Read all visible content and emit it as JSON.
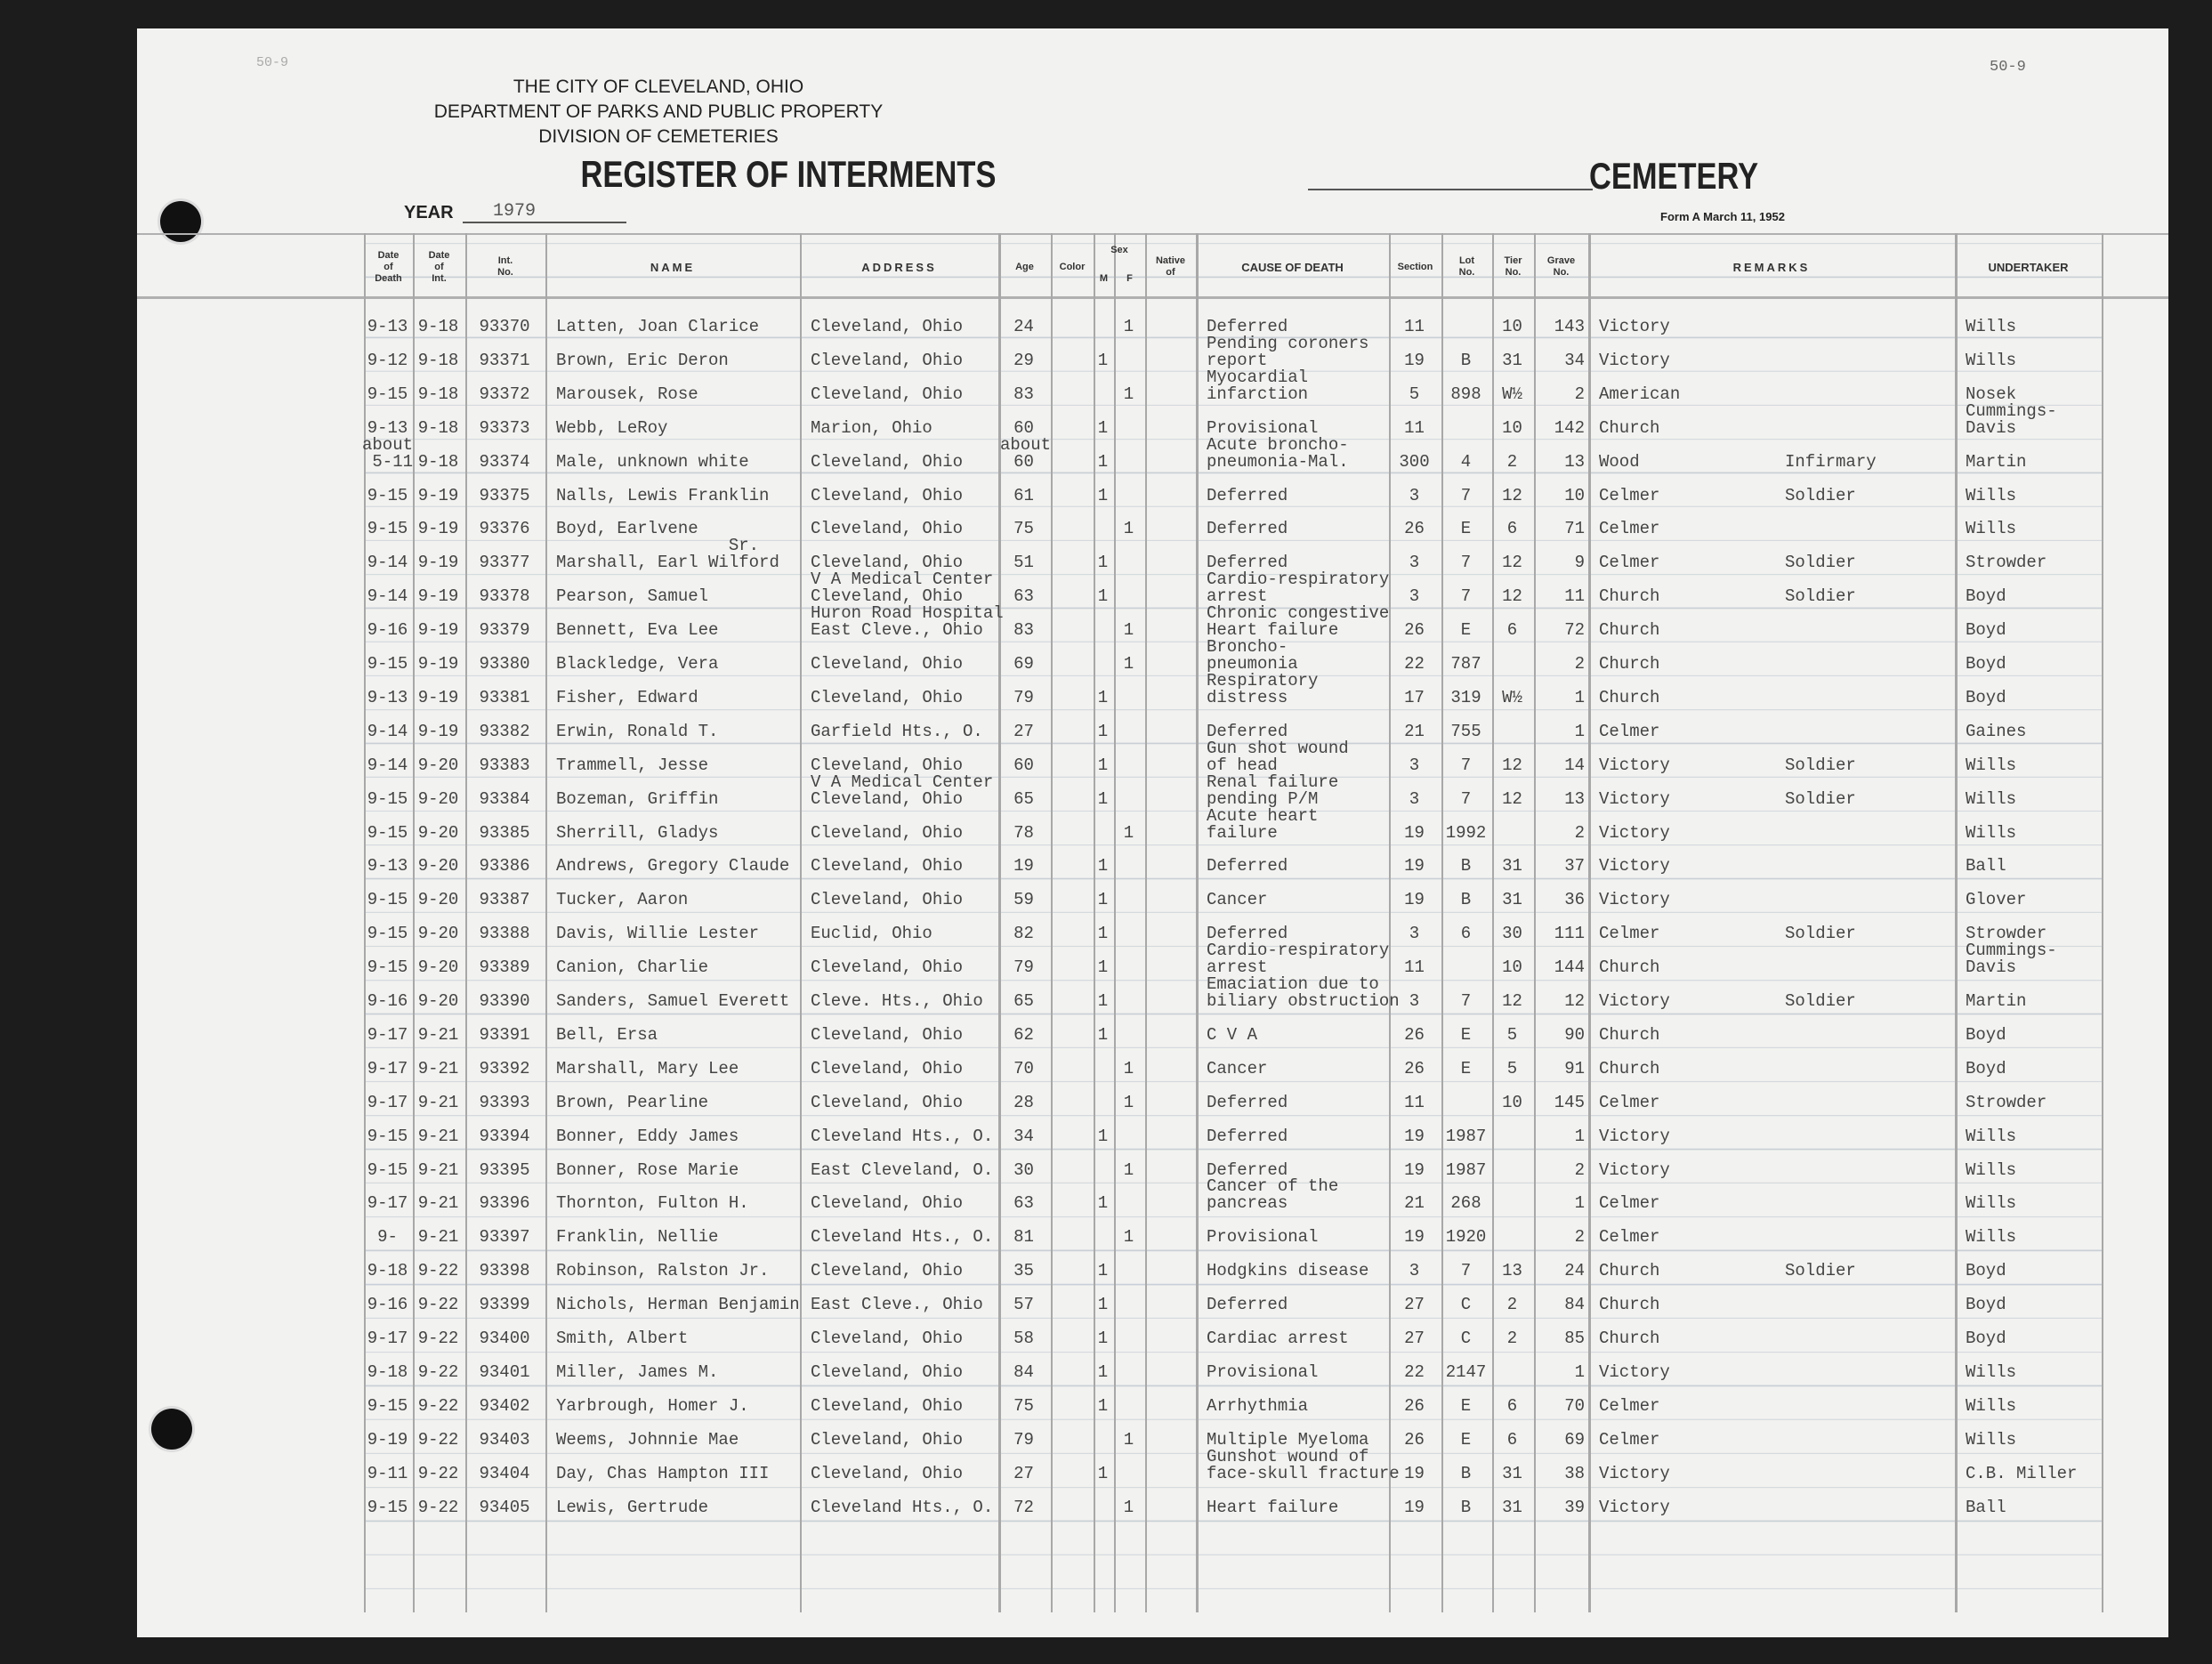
{
  "header": {
    "page_ref_left": "50-9",
    "page_ref_right": "50-9",
    "city": "THE CITY OF CLEVELAND, OHIO",
    "department": "DEPARTMENT OF PARKS AND PUBLIC PROPERTY",
    "division": "DIVISION OF CEMETERIES",
    "title": "REGISTER OF INTERMENTS",
    "year_label": "YEAR",
    "year": "1979",
    "cemetery_label": "CEMETERY",
    "form": "Form A March 11, 1952"
  },
  "columns": {
    "death": "Date\nof\nDeath",
    "interment": "Date\nof\nInt.",
    "int_no": "Int.\nNo.",
    "name": "NAME",
    "address": "ADDRESS",
    "age": "Age",
    "color": "Color",
    "sex": "Sex",
    "m": "M",
    "f": "F",
    "native": "Native\nof",
    "cause": "CAUSE OF DEATH",
    "section": "Section",
    "lot": "Lot\nNo.",
    "tier": "Tier\nNo.",
    "grave": "Grave\nNo.",
    "remarks": "REMARKS",
    "undertaker": "UNDERTAKER"
  },
  "rows": [
    {
      "death": "9-13",
      "interment": "9-18",
      "int_no": "93370",
      "name": "Latten, Joan Clarice",
      "address": "Cleveland, Ohio",
      "age": "24",
      "m": "",
      "f": "1",
      "cause": "Deferred",
      "section": "11",
      "lot": "",
      "tier": "10",
      "grave": "143",
      "cemetery": "Victory",
      "remarks": "",
      "undertaker": "Wills"
    },
    {
      "death": "9-12",
      "interment": "9-18",
      "int_no": "93371",
      "name": "Brown, Eric Deron",
      "address": "Cleveland, Ohio",
      "age": "29",
      "m": "1",
      "f": "",
      "cause": "Pending coroners\nreport",
      "section": "19",
      "lot": "B",
      "tier": "31",
      "grave": "34",
      "cemetery": "Victory",
      "remarks": "",
      "undertaker": "Wills"
    },
    {
      "death": "9-15",
      "interment": "9-18",
      "int_no": "93372",
      "name": "Marousek, Rose",
      "address": "Cleveland, Ohio",
      "age": "83",
      "m": "",
      "f": "1",
      "cause": "Myocardial\ninfarction",
      "section": "5",
      "lot": "898",
      "tier": "W½",
      "grave": "2",
      "cemetery": "American",
      "remarks": "",
      "undertaker": "Nosek"
    },
    {
      "death": "9-13",
      "interment": "9-18",
      "int_no": "93373",
      "name": "Webb, LeRoy",
      "address": "Marion, Ohio",
      "age": "60",
      "m": "1",
      "f": "",
      "cause": "Provisional",
      "section": "11",
      "lot": "",
      "tier": "10",
      "grave": "142",
      "cemetery": "Church",
      "remarks": "",
      "undertaker": "Cummings-\nDavis"
    },
    {
      "death": "about\n5-11",
      "interment": "9-18",
      "int_no": "93374",
      "name": "Male, unknown white",
      "address": "Cleveland, Ohio",
      "age": "about\n60",
      "m": "1",
      "f": "",
      "cause": "Acute broncho-\npneumonia-Mal.",
      "section": "300",
      "lot": "4",
      "tier": "2",
      "grave": "13",
      "cemetery": "Wood",
      "remarks": "Infirmary",
      "undertaker": "Martin"
    },
    {
      "death": "9-15",
      "interment": "9-19",
      "int_no": "93375",
      "name": "Nalls, Lewis Franklin",
      "address": "Cleveland, Ohio",
      "age": "61",
      "m": "1",
      "f": "",
      "cause": "Deferred",
      "section": "3",
      "lot": "7",
      "tier": "12",
      "grave": "10",
      "cemetery": "Celmer",
      "remarks": "Soldier",
      "undertaker": "Wills"
    },
    {
      "death": "9-15",
      "interment": "9-19",
      "int_no": "93376",
      "name": "Boyd, Earlvene",
      "address": "Cleveland, Ohio",
      "age": "75",
      "m": "",
      "f": "1",
      "cause": "Deferred",
      "section": "26",
      "lot": "E",
      "tier": "6",
      "grave": "71",
      "cemetery": "Celmer",
      "remarks": "",
      "undertaker": "Wills"
    },
    {
      "death": "9-14",
      "interment": "9-19",
      "int_no": "93377",
      "name": "                 Sr.\nMarshall, Earl Wilford",
      "address": "Cleveland, Ohio",
      "age": "51",
      "m": "1",
      "f": "",
      "cause": "Deferred",
      "section": "3",
      "lot": "7",
      "tier": "12",
      "grave": "9",
      "cemetery": "Celmer",
      "remarks": "Soldier",
      "undertaker": "Strowder"
    },
    {
      "death": "9-14",
      "interment": "9-19",
      "int_no": "93378",
      "name": "Pearson, Samuel",
      "address": "V A Medical Center\nCleveland, Ohio",
      "age": "63",
      "m": "1",
      "f": "",
      "cause": "Cardio-respiratory\narrest",
      "section": "3",
      "lot": "7",
      "tier": "12",
      "grave": "11",
      "cemetery": "Church",
      "remarks": "Soldier",
      "undertaker": "Boyd"
    },
    {
      "death": "9-16",
      "interment": "9-19",
      "int_no": "93379",
      "name": "Bennett, Eva Lee",
      "address": "Huron Road Hospital\nEast Cleve., Ohio",
      "age": "83",
      "m": "",
      "f": "1",
      "cause": "Chronic congestive\nHeart failure",
      "section": "26",
      "lot": "E",
      "tier": "6",
      "grave": "72",
      "cemetery": "Church",
      "remarks": "",
      "undertaker": "Boyd"
    },
    {
      "death": "9-15",
      "interment": "9-19",
      "int_no": "93380",
      "name": "Blackledge, Vera",
      "address": "Cleveland, Ohio",
      "age": "69",
      "m": "",
      "f": "1",
      "cause": "Broncho-\npneumonia",
      "section": "22",
      "lot": "787",
      "tier": "",
      "grave": "2",
      "cemetery": "Church",
      "remarks": "",
      "undertaker": "Boyd"
    },
    {
      "death": "9-13",
      "interment": "9-19",
      "int_no": "93381",
      "name": "Fisher, Edward",
      "address": "Cleveland, Ohio",
      "age": "79",
      "m": "1",
      "f": "",
      "cause": "Respiratory\ndistress",
      "section": "17",
      "lot": "319",
      "tier": "W½",
      "grave": "1",
      "cemetery": "Church",
      "remarks": "",
      "undertaker": "Boyd"
    },
    {
      "death": "9-14",
      "interment": "9-19",
      "int_no": "93382",
      "name": "Erwin, Ronald T.",
      "address": "Garfield Hts., O.",
      "age": "27",
      "m": "1",
      "f": "",
      "cause": "Deferred",
      "section": "21",
      "lot": "755",
      "tier": "",
      "grave": "1",
      "cemetery": "Celmer",
      "remarks": "",
      "undertaker": "Gaines"
    },
    {
      "death": "9-14",
      "interment": "9-20",
      "int_no": "93383",
      "name": "Trammell, Jesse",
      "address": "Cleveland, Ohio",
      "age": "60",
      "m": "1",
      "f": "",
      "cause": "Gun shot wound\nof head",
      "section": "3",
      "lot": "7",
      "tier": "12",
      "grave": "14",
      "cemetery": "Victory",
      "remarks": "Soldier",
      "undertaker": "Wills"
    },
    {
      "death": "9-15",
      "interment": "9-20",
      "int_no": "93384",
      "name": "Bozeman, Griffin",
      "address": "V A Medical Center\nCleveland, Ohio",
      "age": "65",
      "m": "1",
      "f": "",
      "cause": "Renal failure\npending P/M",
      "section": "3",
      "lot": "7",
      "tier": "12",
      "grave": "13",
      "cemetery": "Victory",
      "remarks": "Soldier",
      "undertaker": "Wills"
    },
    {
      "death": "9-15",
      "interment": "9-20",
      "int_no": "93385",
      "name": "Sherrill, Gladys",
      "address": "Cleveland, Ohio",
      "age": "78",
      "m": "",
      "f": "1",
      "cause": "Acute heart\nfailure",
      "section": "19",
      "lot": "1992",
      "tier": "",
      "grave": "2",
      "cemetery": "Victory",
      "remarks": "",
      "undertaker": "Wills"
    },
    {
      "death": "9-13",
      "interment": "9-20",
      "int_no": "93386",
      "name": "Andrews, Gregory Claude",
      "address": "Cleveland, Ohio",
      "age": "19",
      "m": "1",
      "f": "",
      "cause": "Deferred",
      "section": "19",
      "lot": "B",
      "tier": "31",
      "grave": "37",
      "cemetery": "Victory",
      "remarks": "",
      "undertaker": "Ball"
    },
    {
      "death": "9-15",
      "interment": "9-20",
      "int_no": "93387",
      "name": "Tucker, Aaron",
      "address": "Cleveland, Ohio",
      "age": "59",
      "m": "1",
      "f": "",
      "cause": "Cancer",
      "section": "19",
      "lot": "B",
      "tier": "31",
      "grave": "36",
      "cemetery": "Victory",
      "remarks": "",
      "undertaker": "Glover"
    },
    {
      "death": "9-15",
      "interment": "9-20",
      "int_no": "93388",
      "name": "Davis, Willie Lester",
      "address": "Euclid, Ohio",
      "age": "82",
      "m": "1",
      "f": "",
      "cause": "Deferred",
      "section": "3",
      "lot": "6",
      "tier": "30",
      "grave": "111",
      "cemetery": "Celmer",
      "remarks": "Soldier",
      "undertaker": "Strowder"
    },
    {
      "death": "9-15",
      "interment": "9-20",
      "int_no": "93389",
      "name": "Canion, Charlie",
      "address": "Cleveland, Ohio",
      "age": "79",
      "m": "1",
      "f": "",
      "cause": "Cardio-respiratory\narrest",
      "section": "11",
      "lot": "",
      "tier": "10",
      "grave": "144",
      "cemetery": "Church",
      "remarks": "",
      "undertaker": "Cummings-\nDavis"
    },
    {
      "death": "9-16",
      "interment": "9-20",
      "int_no": "93390",
      "name": "Sanders, Samuel Everett",
      "address": "Cleve. Hts., Ohio",
      "age": "65",
      "m": "1",
      "f": "",
      "cause": "Emaciation due to\nbiliary obstruction",
      "section": "3",
      "lot": "7",
      "tier": "12",
      "grave": "12",
      "cemetery": "Victory",
      "remarks": "Soldier",
      "undertaker": "Martin"
    },
    {
      "death": "9-17",
      "interment": "9-21",
      "int_no": "93391",
      "name": "Bell, Ersa",
      "address": "Cleveland, Ohio",
      "age": "62",
      "m": "1",
      "f": "",
      "cause": "C V A",
      "section": "26",
      "lot": "E",
      "tier": "5",
      "grave": "90",
      "cemetery": "Church",
      "remarks": "",
      "undertaker": "Boyd"
    },
    {
      "death": "9-17",
      "interment": "9-21",
      "int_no": "93392",
      "name": "Marshall, Mary Lee",
      "address": "Cleveland, Ohio",
      "age": "70",
      "m": "",
      "f": "1",
      "cause": "Cancer",
      "section": "26",
      "lot": "E",
      "tier": "5",
      "grave": "91",
      "cemetery": "Church",
      "remarks": "",
      "undertaker": "Boyd"
    },
    {
      "death": "9-17",
      "interment": "9-21",
      "int_no": "93393",
      "name": "Brown, Pearline",
      "address": "Cleveland, Ohio",
      "age": "28",
      "m": "",
      "f": "1",
      "cause": "Deferred",
      "section": "11",
      "lot": "",
      "tier": "10",
      "grave": "145",
      "cemetery": "Celmer",
      "remarks": "",
      "undertaker": "Strowder"
    },
    {
      "death": "9-15",
      "interment": "9-21",
      "int_no": "93394",
      "name": "Bonner, Eddy James",
      "address": "Cleveland Hts., O.",
      "age": "34",
      "m": "1",
      "f": "",
      "cause": "Deferred",
      "section": "19",
      "lot": "1987",
      "tier": "",
      "grave": "1",
      "cemetery": "Victory",
      "remarks": "",
      "undertaker": "Wills"
    },
    {
      "death": "9-15",
      "interment": "9-21",
      "int_no": "93395",
      "name": "Bonner, Rose Marie",
      "address": "East Cleveland, O.",
      "age": "30",
      "m": "",
      "f": "1",
      "cause": "Deferred",
      "section": "19",
      "lot": "1987",
      "tier": "",
      "grave": "2",
      "cemetery": "Victory",
      "remarks": "",
      "undertaker": "Wills"
    },
    {
      "death": "9-17",
      "interment": "9-21",
      "int_no": "93396",
      "name": "Thornton, Fulton H.",
      "address": "Cleveland, Ohio",
      "age": "63",
      "m": "1",
      "f": "",
      "cause": "Cancer of the\npancreas",
      "section": "21",
      "lot": "268",
      "tier": "",
      "grave": "1",
      "cemetery": "Celmer",
      "remarks": "",
      "undertaker": "Wills"
    },
    {
      "death": "9-",
      "interment": "9-21",
      "int_no": "93397",
      "name": "Franklin, Nellie",
      "address": "Cleveland Hts., O.",
      "age": "81",
      "m": "",
      "f": "1",
      "cause": "Provisional",
      "section": "19",
      "lot": "1920",
      "tier": "",
      "grave": "2",
      "cemetery": "Celmer",
      "remarks": "",
      "undertaker": "Wills"
    },
    {
      "death": "9-18",
      "interment": "9-22",
      "int_no": "93398",
      "name": "Robinson, Ralston Jr.",
      "address": "Cleveland, Ohio",
      "age": "35",
      "m": "1",
      "f": "",
      "cause": "Hodgkins disease",
      "section": "3",
      "lot": "7",
      "tier": "13",
      "grave": "24",
      "cemetery": "Church",
      "remarks": "Soldier",
      "undertaker": "Boyd"
    },
    {
      "death": "9-16",
      "interment": "9-22",
      "int_no": "93399",
      "name": "Nichols, Herman Benjamin",
      "address": "East Cleve., Ohio",
      "age": "57",
      "m": "1",
      "f": "",
      "cause": "Deferred",
      "section": "27",
      "lot": "C",
      "tier": "2",
      "grave": "84",
      "cemetery": "Church",
      "remarks": "",
      "undertaker": "Boyd"
    },
    {
      "death": "9-17",
      "interment": "9-22",
      "int_no": "93400",
      "name": "Smith, Albert",
      "address": "Cleveland, Ohio",
      "age": "58",
      "m": "1",
      "f": "",
      "cause": "Cardiac arrest",
      "section": "27",
      "lot": "C",
      "tier": "2",
      "grave": "85",
      "cemetery": "Church",
      "remarks": "",
      "undertaker": "Boyd"
    },
    {
      "death": "9-18",
      "interment": "9-22",
      "int_no": "93401",
      "name": "Miller, James M.",
      "address": "Cleveland, Ohio",
      "age": "84",
      "m": "1",
      "f": "",
      "cause": "Provisional",
      "section": "22",
      "lot": "2147",
      "tier": "",
      "grave": "1",
      "cemetery": "Victory",
      "remarks": "",
      "undertaker": "Wills"
    },
    {
      "death": "9-15",
      "interment": "9-22",
      "int_no": "93402",
      "name": "Yarbrough, Homer J.",
      "address": "Cleveland, Ohio",
      "age": "75",
      "m": "1",
      "f": "",
      "cause": "Arrhythmia",
      "section": "26",
      "lot": "E",
      "tier": "6",
      "grave": "70",
      "cemetery": "Celmer",
      "remarks": "",
      "undertaker": "Wills"
    },
    {
      "death": "9-19",
      "interment": "9-22",
      "int_no": "93403",
      "name": "Weems, Johnnie Mae",
      "address": "Cleveland, Ohio",
      "age": "79",
      "m": "",
      "f": "1",
      "cause": "Multiple Myeloma",
      "section": "26",
      "lot": "E",
      "tier": "6",
      "grave": "69",
      "cemetery": "Celmer",
      "remarks": "",
      "undertaker": "Wills"
    },
    {
      "death": "9-11",
      "interment": "9-22",
      "int_no": "93404",
      "name": "Day, Chas Hampton III",
      "address": "Cleveland, Ohio",
      "age": "27",
      "m": "1",
      "f": "",
      "cause": "Gunshot wound of\nface-skull fracture",
      "section": "19",
      "lot": "B",
      "tier": "31",
      "grave": "38",
      "cemetery": "Victory",
      "remarks": "",
      "undertaker": "C.B. Miller"
    },
    {
      "death": "9-15",
      "interment": "9-22",
      "int_no": "93405",
      "name": "Lewis, Gertrude",
      "address": "Cleveland Hts., O.",
      "age": "72",
      "m": "",
      "f": "1",
      "cause": "Heart failure",
      "section": "19",
      "lot": "B",
      "tier": "31",
      "grave": "39",
      "cemetery": "Victory",
      "remarks": "",
      "undertaker": "Ball"
    }
  ]
}
